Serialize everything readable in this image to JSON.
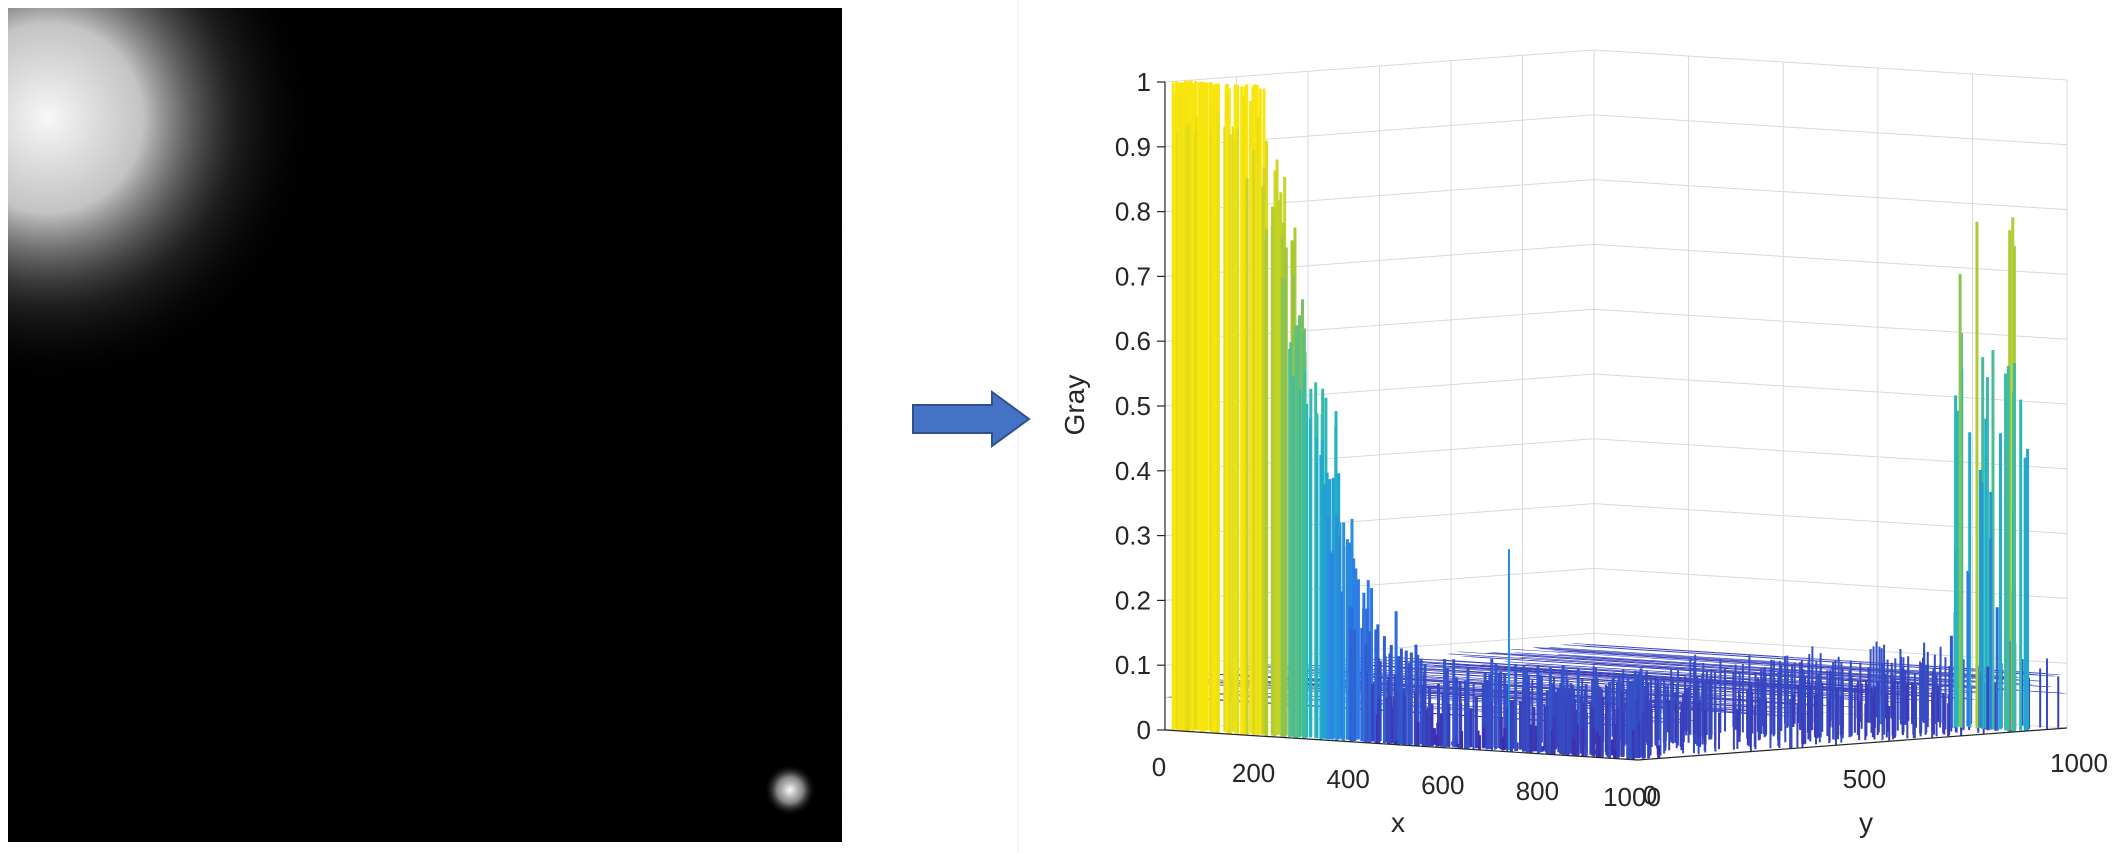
{
  "arrow_icon": "right-arrow-icon",
  "colors": {
    "image_background": "#000000",
    "arrow_fill": "#4472c4",
    "arrow_stroke": "#2f528f",
    "grid": "#d9d9d9",
    "axis": "#262626",
    "colormap_low": "#3e26a8",
    "colormap_mid": "#1fb8c3",
    "colormap_high": "#f9e50e"
  },
  "chart_data": [
    {
      "type": "image",
      "description_of_content": "grayscale noise image with bright blob at top-left corner and small bright spot near bottom-right corner",
      "bright_spots": [
        {
          "location": "top-left",
          "size": "large"
        },
        {
          "location": "bottom-right",
          "size": "small"
        }
      ]
    },
    {
      "type": "surface",
      "title": "",
      "xlabel": "x",
      "ylabel": "y",
      "zlabel": "Gray",
      "xlim": [
        0,
        1000
      ],
      "ylim": [
        0,
        1000
      ],
      "zlim": [
        0,
        1
      ],
      "x_ticks": [
        "0",
        "200",
        "400",
        "600",
        "800",
        "1000"
      ],
      "y_ticks": [
        "0",
        "500",
        "1000"
      ],
      "z_ticks": [
        "0",
        "0.1",
        "0.2",
        "0.3",
        "0.4",
        "0.5",
        "0.6",
        "0.7",
        "0.8",
        "0.9",
        "1"
      ],
      "grid": true,
      "colormap": "parula",
      "noise_floor": 0.05,
      "series": [
        {
          "x": [
            0,
            50,
            100,
            150,
            200,
            250,
            300,
            350,
            400,
            450,
            500,
            600,
            800,
            1000
          ],
          "y": [
            1.0,
            1.0,
            1.0,
            0.97,
            0.85,
            0.65,
            0.45,
            0.3,
            0.18,
            0.1,
            0.07,
            0.06,
            0.06,
            0.06
          ]
        },
        {
          "y_peak": 900,
          "z_peak": 0.86
        }
      ],
      "spikes": [
        {
          "x": 700,
          "z": 0.31
        }
      ]
    }
  ]
}
